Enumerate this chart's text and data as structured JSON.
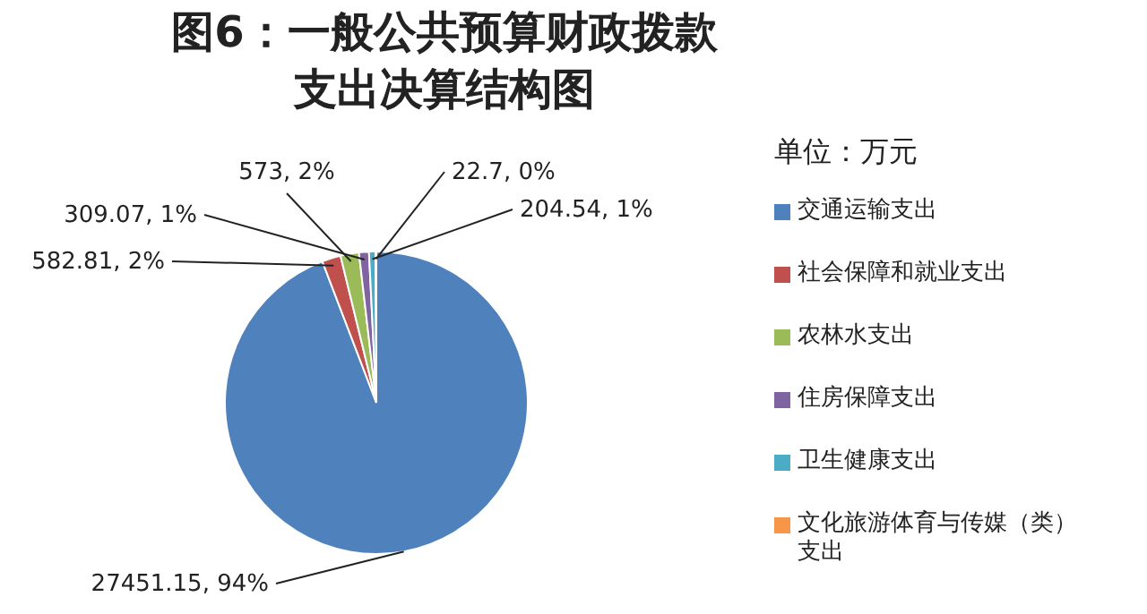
{
  "chart_data": {
    "type": "pie",
    "title": "图6：一般公共预算财政拨款支出决算结构图",
    "legend_title": "单位：万元",
    "legend": "right",
    "categories": [
      "交通运输支出",
      "社会保障和就业支出",
      "农林水支出",
      "住房保障支出",
      "卫生健康支出",
      "文化旅游体育与传媒（类）支出"
    ],
    "values": [
      27451.15,
      582.81,
      573,
      309.07,
      204.54,
      22.7
    ],
    "colors": [
      "#4f81bd",
      "#c0504d",
      "#9bbb59",
      "#8064a2",
      "#4bacc6",
      "#f79646"
    ],
    "value_labels": [
      "27451.15, 94%",
      "582.81, 2%",
      "573, 2%",
      "309.07, 1%",
      "204.54, 1%",
      "22.7, 0%"
    ]
  }
}
